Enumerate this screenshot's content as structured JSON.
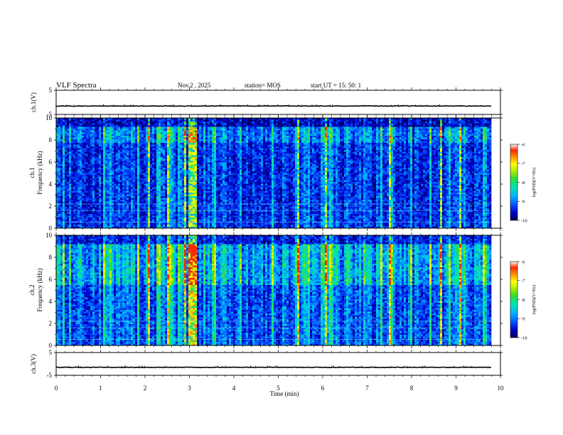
{
  "header": {
    "title": "VLF Spectra",
    "date": "Nov.2  , 2025",
    "station": "station= MOS",
    "start_ut": "start  UT  =   15: 50: 1"
  },
  "colors": {
    "spectrogram_scale": [
      "#000050",
      "#0000c8",
      "#0050ff",
      "#00b4ff",
      "#00e6b4",
      "#32dc32",
      "#b4f000",
      "#ffff00",
      "#ff9600",
      "#ff2800",
      "#ffffff"
    ]
  },
  "chart_data": [
    {
      "type": "line",
      "name": "ch1-voltage",
      "ylabel": "ch.1(V)",
      "ylim": [
        -5,
        5
      ],
      "yticks": [
        "5",
        "-5"
      ],
      "baseline_value": -1.5
    },
    {
      "type": "heatmap",
      "name": "ch1-spectrogram",
      "ylabel_top": "ch.1",
      "ylabel": "Frequency (kHz)",
      "ylim": [
        0,
        10
      ],
      "yticks": [
        "10",
        "8",
        "6",
        "4",
        "2",
        "0"
      ],
      "colorbar": {
        "ticks": [
          "-6",
          "-7",
          "-8",
          "-9",
          "-10"
        ],
        "label": "log(PSD)(V²/Hz)",
        "range": [
          -10,
          -6
        ]
      }
    },
    {
      "type": "heatmap",
      "name": "ch2-spectrogram",
      "ylabel_top": "ch.2",
      "ylabel": "Frequency (kHz)",
      "ylim": [
        0,
        10
      ],
      "yticks": [
        "10",
        "8",
        "6",
        "4",
        "2",
        "0"
      ],
      "colorbar": {
        "ticks": [
          "-6",
          "-7",
          "-8",
          "-9",
          "-10"
        ],
        "label": "log(PSD)(V²/Hz)",
        "range": [
          -10,
          -6
        ]
      }
    },
    {
      "type": "line",
      "name": "ch3-voltage",
      "ylabel": "ch.3(V)",
      "ylim": [
        -5,
        5
      ],
      "yticks": [
        "5",
        "-5"
      ],
      "baseline_value": -1.5
    }
  ],
  "xaxis": {
    "label": "Time  (min)",
    "xlim": [
      0,
      10
    ],
    "ticks": [
      "0",
      "1",
      "2",
      "3",
      "4",
      "5",
      "6",
      "7",
      "8",
      "9",
      "10"
    ],
    "data_end": 9.8
  }
}
